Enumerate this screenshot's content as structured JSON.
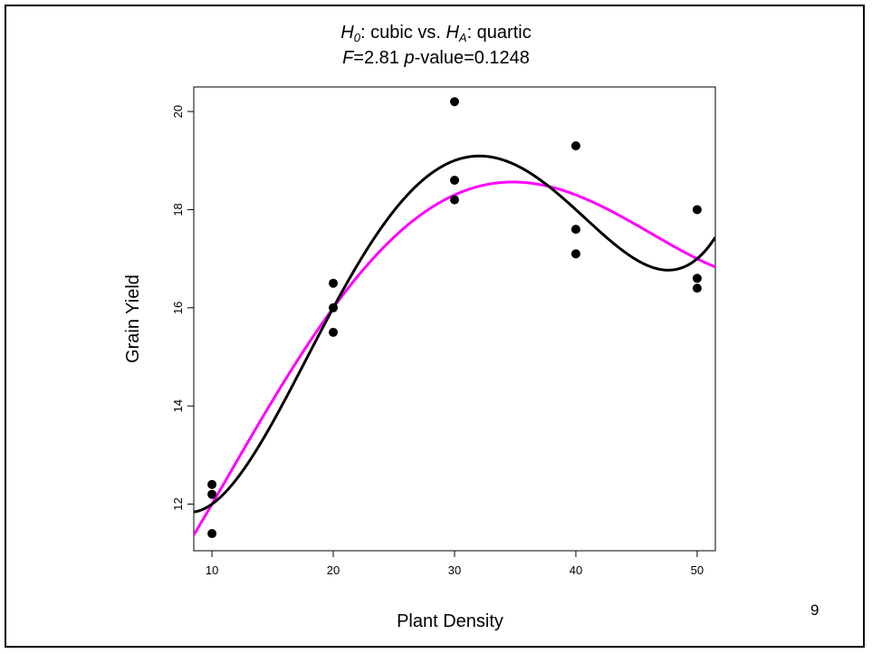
{
  "title": {
    "h0": "H",
    "h0_sub": "0",
    "h0_text": ": cubic vs. ",
    "ha": "H",
    "ha_sub": "A",
    "ha_text": ": quartic",
    "f_label": "F",
    "f_text": "=2.81 ",
    "p_label": "p",
    "p_text": "-value=0.1248"
  },
  "slide_number": "9",
  "chart_data": {
    "type": "scatter",
    "xlabel": "Plant Density",
    "ylabel": "Grain Yield",
    "xlim": [
      8.5,
      51.5
    ],
    "ylim": [
      11.05,
      20.5
    ],
    "xticks": [
      10,
      20,
      30,
      40,
      50
    ],
    "yticks": [
      12,
      14,
      16,
      18,
      20
    ],
    "grid": false,
    "points": [
      {
        "x": 10,
        "y": 12.4
      },
      {
        "x": 10,
        "y": 12.2
      },
      {
        "x": 10,
        "y": 11.4
      },
      {
        "x": 20,
        "y": 16.5
      },
      {
        "x": 20,
        "y": 16.0
      },
      {
        "x": 20,
        "y": 15.5
      },
      {
        "x": 30,
        "y": 20.2
      },
      {
        "x": 30,
        "y": 18.6
      },
      {
        "x": 30,
        "y": 18.2
      },
      {
        "x": 40,
        "y": 19.3
      },
      {
        "x": 40,
        "y": 17.6
      },
      {
        "x": 40,
        "y": 17.1
      },
      {
        "x": 50,
        "y": 18.0
      },
      {
        "x": 50,
        "y": 16.6
      },
      {
        "x": 50,
        "y": 16.4
      }
    ],
    "series": [
      {
        "kind": "quartic fit",
        "color": "#000000",
        "x": [
          10,
          20,
          30,
          40,
          50
        ],
        "y": [
          12.0,
          16.0,
          19.0,
          18.0,
          17.0
        ]
      },
      {
        "kind": "cubic fit",
        "color": "#ff00ff",
        "x": [
          10,
          20,
          30,
          40,
          50
        ],
        "y": [
          12.0,
          16.0,
          18.3,
          18.3,
          17.0
        ]
      }
    ]
  }
}
